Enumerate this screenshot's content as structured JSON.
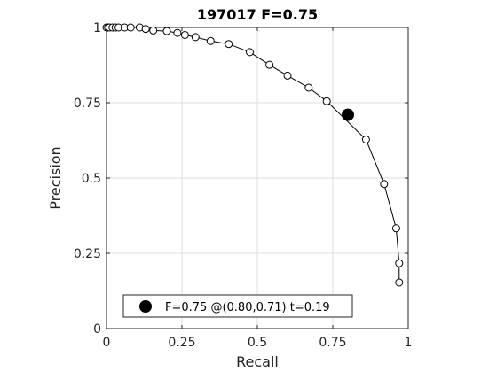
{
  "chart_data": {
    "type": "line",
    "title": "197017 F=0.75",
    "xlabel": "Recall",
    "ylabel": "Precision",
    "xlim": [
      0,
      1
    ],
    "ylim": [
      0,
      1
    ],
    "grid": true,
    "x_ticks": [
      {
        "value": 0,
        "label": "0"
      },
      {
        "value": 0.25,
        "label": "0.25"
      },
      {
        "value": 0.5,
        "label": "0.5"
      },
      {
        "value": 0.75,
        "label": "0.75"
      },
      {
        "value": 1,
        "label": "1"
      }
    ],
    "y_ticks": [
      {
        "value": 0,
        "label": "0"
      },
      {
        "value": 0.25,
        "label": "0.25"
      },
      {
        "value": 0.5,
        "label": "0.5"
      },
      {
        "value": 0.75,
        "label": "0.75"
      },
      {
        "value": 1,
        "label": "1"
      }
    ],
    "series": [
      {
        "points": [
          [
            0.0,
            1.0
          ],
          [
            0.005,
            1.0
          ],
          [
            0.01,
            1.0
          ],
          [
            0.02,
            1.0
          ],
          [
            0.03,
            1.0
          ],
          [
            0.04,
            1.0
          ],
          [
            0.06,
            1.0
          ],
          [
            0.08,
            1.0
          ],
          [
            0.11,
            1.0
          ],
          [
            0.13,
            0.995
          ],
          [
            0.155,
            0.99
          ],
          [
            0.2,
            0.988
          ],
          [
            0.235,
            0.982
          ],
          [
            0.26,
            0.975
          ],
          [
            0.295,
            0.968
          ],
          [
            0.345,
            0.955
          ],
          [
            0.405,
            0.945
          ],
          [
            0.475,
            0.918
          ],
          [
            0.54,
            0.876
          ],
          [
            0.6,
            0.84
          ],
          [
            0.67,
            0.8
          ],
          [
            0.73,
            0.755
          ],
          [
            0.86,
            0.628
          ],
          [
            0.92,
            0.48
          ],
          [
            0.96,
            0.333
          ],
          [
            0.97,
            0.217
          ],
          [
            0.97,
            0.153
          ]
        ]
      }
    ],
    "best_point": {
      "x": 0.8,
      "y": 0.71
    },
    "legend": {
      "position": "bottom",
      "text": "F=0.75 @(0.80,0.71) t=0.19"
    }
  }
}
